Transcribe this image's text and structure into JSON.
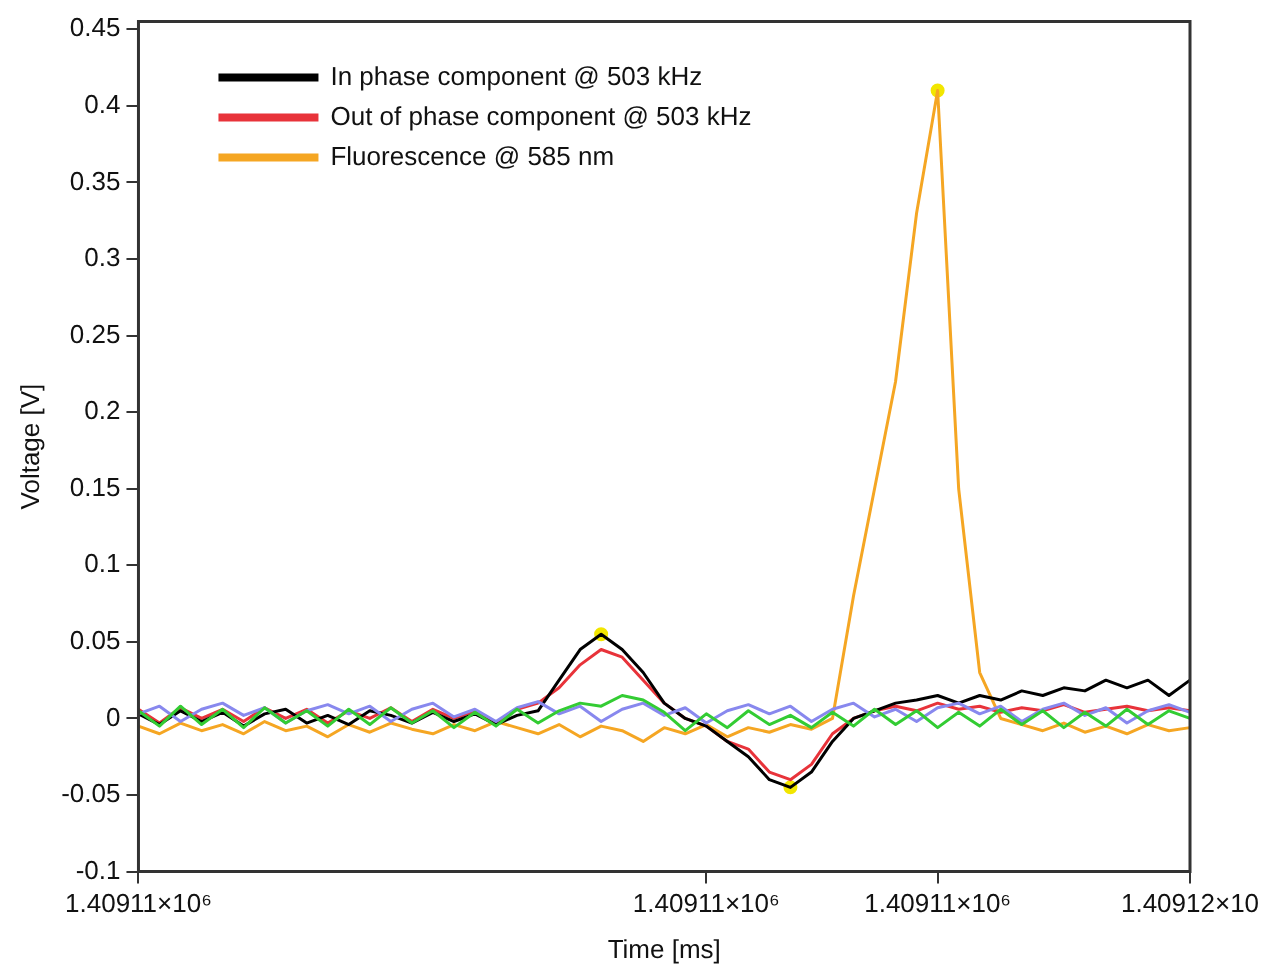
{
  "chart_data": {
    "type": "line",
    "xlabel": "Time [ms]",
    "ylabel": "Voltage [V]",
    "categories": [
      "1.40911×10⁶",
      null,
      null,
      null,
      null,
      null,
      null,
      null,
      null,
      null,
      null,
      null,
      null,
      null,
      null,
      null,
      null,
      null,
      null,
      null,
      null,
      null,
      null,
      null,
      null,
      null,
      null,
      "1.40911×10⁶",
      null,
      null,
      null,
      null,
      null,
      null,
      null,
      null,
      null,
      null,
      "1.40911×10⁶",
      null,
      null,
      null,
      null,
      null,
      null,
      null,
      null,
      null,
      null,
      null,
      "1.40912×10"
    ],
    "ylim": [
      -0.1,
      0.455
    ],
    "yticks": [
      -0.1,
      -0.05,
      0,
      0.05,
      0.1,
      0.15,
      0.2,
      0.25,
      0.3,
      0.35,
      0.4,
      0.45
    ],
    "grid": false,
    "legend": "top left",
    "marker": "none",
    "line_style": "solid",
    "series": [
      {
        "color": "#33cc33",
        "values": [
          0.005,
          -0.005,
          0.008,
          -0.004,
          0.006,
          -0.006,
          0.007,
          -0.003,
          0.005,
          -0.005,
          0.006,
          -0.004,
          0.007,
          -0.003,
          0.005,
          -0.006,
          0.004,
          -0.005,
          0.006,
          -0.003,
          0.005,
          0.01,
          0.008,
          0.015,
          0.012,
          0.004,
          -0.008,
          0.003,
          -0.006,
          0.005,
          -0.004,
          0.002,
          -0.006,
          0.004,
          -0.005,
          0.006,
          -0.004,
          0.005,
          -0.006,
          0.004,
          -0.005,
          0.006,
          -0.004,
          0.005,
          -0.006,
          0.004,
          -0.005,
          0.006,
          -0.004,
          0.005,
          0.0
        ]
      },
      {
        "color": "#8888ee",
        "values": [
          0.003,
          0.008,
          -0.002,
          0.006,
          0.01,
          0.002,
          0.007,
          -0.003,
          0.005,
          0.009,
          0.003,
          0.008,
          -0.002,
          0.006,
          0.01,
          0.001,
          0.006,
          -0.002,
          0.007,
          0.011,
          0.003,
          0.008,
          -0.002,
          0.006,
          0.01,
          0.002,
          0.007,
          -0.003,
          0.005,
          0.009,
          0.003,
          0.008,
          -0.002,
          0.006,
          0.01,
          0.001,
          0.006,
          -0.002,
          0.007,
          0.01,
          0.003,
          0.008,
          -0.002,
          0.006,
          0.01,
          0.002,
          0.007,
          -0.003,
          0.005,
          0.009,
          0.004
        ]
      },
      {
        "name": "In phase component @ 503 kHz",
        "color": "#000000",
        "values": [
          0.003,
          -0.004,
          0.005,
          -0.002,
          0.004,
          -0.005,
          0.003,
          0.006,
          -0.003,
          0.002,
          -0.004,
          0.005,
          0.002,
          -0.003,
          0.004,
          -0.002,
          0.003,
          -0.004,
          0.002,
          0.005,
          0.025,
          0.045,
          0.055,
          0.045,
          0.03,
          0.01,
          0.0,
          -0.005,
          -0.015,
          -0.025,
          -0.04,
          -0.045,
          -0.035,
          -0.015,
          0.0,
          0.005,
          0.01,
          0.012,
          0.015,
          0.01,
          0.015,
          0.012,
          0.018,
          0.015,
          0.02,
          0.018,
          0.025,
          0.02,
          0.025,
          0.015,
          0.025
        ]
      },
      {
        "name": "Out of phase component @ 503 kHz",
        "color": "#e8333a",
        "values": [
          0.006,
          -0.003,
          0.007,
          0.0,
          0.006,
          -0.002,
          0.007,
          0.0,
          0.006,
          -0.003,
          0.005,
          0.0,
          0.007,
          -0.002,
          0.006,
          0.0,
          0.005,
          -0.003,
          0.006,
          0.01,
          0.02,
          0.035,
          0.045,
          0.04,
          0.025,
          0.01,
          0.0,
          -0.005,
          -0.015,
          -0.02,
          -0.035,
          -0.04,
          -0.03,
          -0.01,
          0.0,
          0.005,
          0.008,
          0.005,
          0.01,
          0.006,
          0.008,
          0.004,
          0.007,
          0.005,
          0.009,
          0.004,
          0.006,
          0.008,
          0.005,
          0.007,
          0.005
        ]
      },
      {
        "name": "Fluorescence @ 585 nm",
        "color": "#f5a623",
        "values": [
          -0.005,
          -0.01,
          -0.003,
          -0.008,
          -0.004,
          -0.01,
          -0.002,
          -0.008,
          -0.005,
          -0.012,
          -0.004,
          -0.009,
          -0.003,
          -0.007,
          -0.01,
          -0.004,
          -0.008,
          -0.002,
          -0.006,
          -0.01,
          -0.004,
          -0.012,
          -0.005,
          -0.008,
          -0.015,
          -0.006,
          -0.01,
          -0.004,
          -0.012,
          -0.006,
          -0.009,
          -0.004,
          -0.007,
          0.0,
          0.08,
          0.15,
          0.22,
          0.33,
          0.41,
          0.15,
          0.03,
          0.0,
          -0.004,
          -0.008,
          -0.003,
          -0.009,
          -0.005,
          -0.01,
          -0.004,
          -0.008,
          -0.006
        ]
      },
      {
        "type": "scatter",
        "marker": "circle",
        "color": "#f2e600",
        "values": [
          null,
          null,
          null,
          null,
          null,
          null,
          null,
          null,
          null,
          null,
          null,
          null,
          null,
          null,
          null,
          null,
          null,
          null,
          null,
          null,
          null,
          null,
          0.055,
          null,
          null,
          null,
          null,
          null,
          null,
          null,
          null,
          -0.045,
          null,
          null,
          null,
          null,
          null,
          null,
          0.41,
          null,
          null,
          null,
          null,
          null,
          null,
          null,
          null,
          null,
          null,
          null,
          null
        ]
      }
    ]
  }
}
